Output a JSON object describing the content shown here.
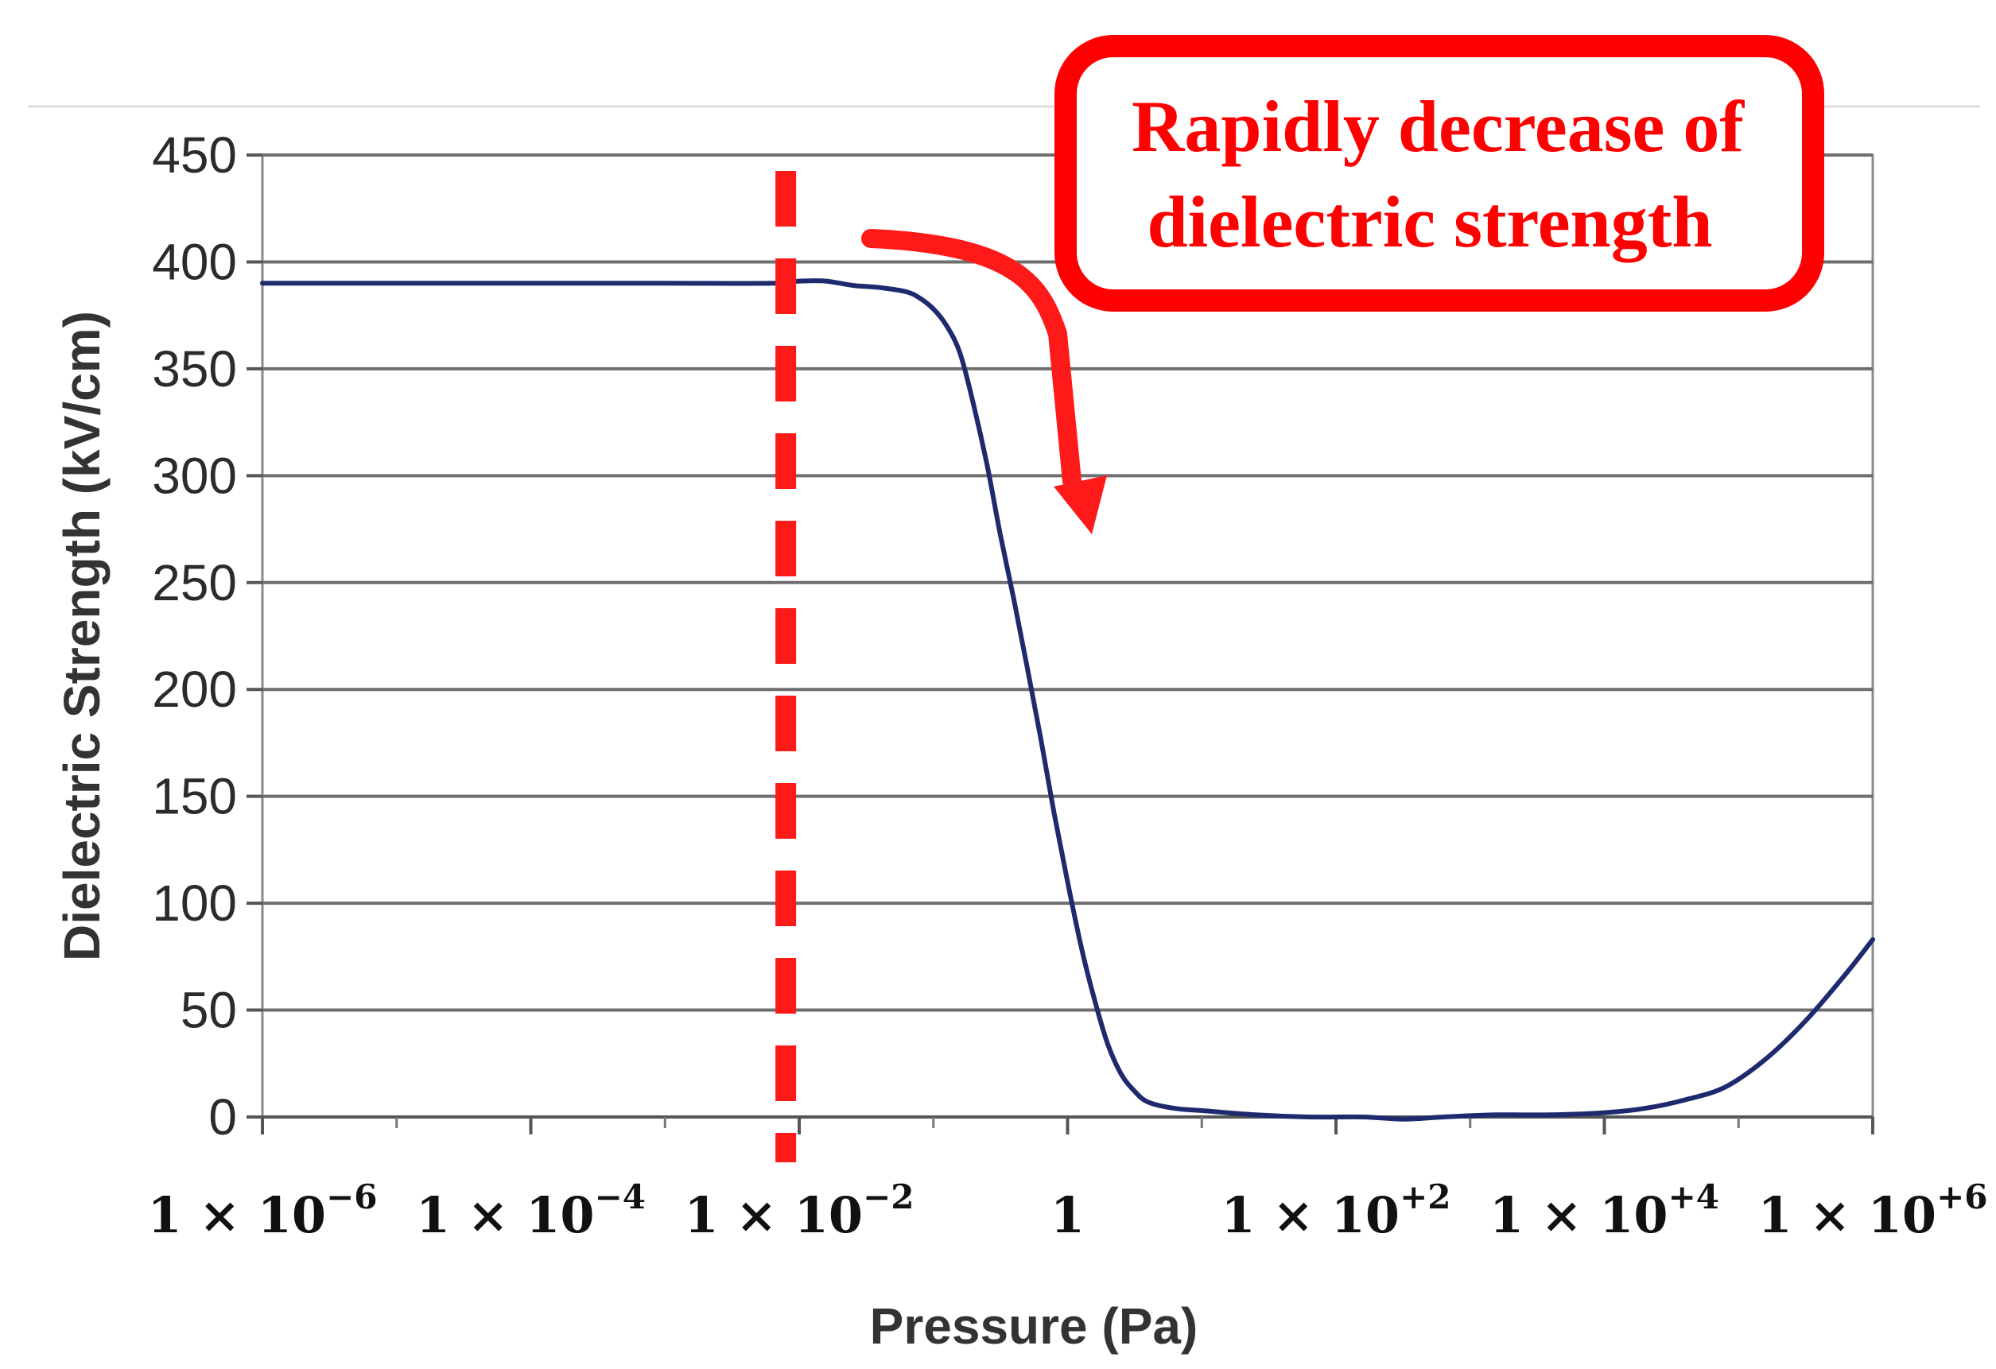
{
  "chart_data": {
    "type": "line",
    "x_scale": "log10",
    "title": "",
    "xlabel": "Pressure (Pa)",
    "ylabel": "Dielectric Strength (kV/cm)",
    "ylim": [
      0,
      450
    ],
    "yticks": [
      0,
      50,
      100,
      150,
      200,
      250,
      300,
      350,
      400,
      450
    ],
    "xlim_exponent": [
      -6,
      6
    ],
    "xticks": [
      {
        "exponent": -6,
        "mantissa": "1 × 10",
        "sup": "−6"
      },
      {
        "exponent": -4,
        "mantissa": "1 × 10",
        "sup": "−4"
      },
      {
        "exponent": -2,
        "mantissa": "1 × 10",
        "sup": "−2"
      },
      {
        "exponent": 0,
        "mantissa": "1",
        "sup": ""
      },
      {
        "exponent": 2,
        "mantissa": "1 × 10",
        "sup": "+2"
      },
      {
        "exponent": 4,
        "mantissa": "1 × 10",
        "sup": "+4"
      },
      {
        "exponent": 6,
        "mantissa": "1 × 10",
        "sup": "+6"
      }
    ],
    "grid": true,
    "series": [
      {
        "name": "Dielectric Strength",
        "color": "#1f2a6e",
        "points": [
          [
            -6,
            390
          ],
          [
            -5,
            390
          ],
          [
            -4,
            390
          ],
          [
            -3,
            390
          ],
          [
            -2.2,
            390
          ],
          [
            -2.0,
            391
          ],
          [
            -1.8,
            391
          ],
          [
            -1.6,
            389
          ],
          [
            -1.4,
            388
          ],
          [
            -1.2,
            386
          ],
          [
            -1.1,
            383
          ],
          [
            -1.0,
            378
          ],
          [
            -0.9,
            370
          ],
          [
            -0.8,
            357
          ],
          [
            -0.7,
            333
          ],
          [
            -0.6,
            305
          ],
          [
            -0.5,
            272
          ],
          [
            -0.4,
            242
          ],
          [
            -0.3,
            210
          ],
          [
            -0.2,
            177
          ],
          [
            -0.1,
            142
          ],
          [
            0.0,
            110
          ],
          [
            0.1,
            80
          ],
          [
            0.2,
            55
          ],
          [
            0.3,
            34
          ],
          [
            0.4,
            20
          ],
          [
            0.5,
            12
          ],
          [
            0.6,
            7
          ],
          [
            0.8,
            4
          ],
          [
            1.0,
            3
          ],
          [
            1.4,
            1
          ],
          [
            1.8,
            0
          ],
          [
            2.2,
            0
          ],
          [
            2.5,
            -1
          ],
          [
            2.8,
            0
          ],
          [
            3.2,
            1
          ],
          [
            3.6,
            1
          ],
          [
            4.0,
            2
          ],
          [
            4.3,
            4
          ],
          [
            4.6,
            8
          ],
          [
            4.9,
            14
          ],
          [
            5.2,
            27
          ],
          [
            5.5,
            45
          ],
          [
            5.8,
            67
          ],
          [
            6.0,
            83
          ]
        ]
      }
    ],
    "reference_line": {
      "exponent": -2.1,
      "style": "dashed",
      "color": "#ff1a1a"
    },
    "annotation": {
      "lines": [
        "Rapidly decrease of",
        "dielectric strength"
      ],
      "color": "#ff0000"
    }
  }
}
